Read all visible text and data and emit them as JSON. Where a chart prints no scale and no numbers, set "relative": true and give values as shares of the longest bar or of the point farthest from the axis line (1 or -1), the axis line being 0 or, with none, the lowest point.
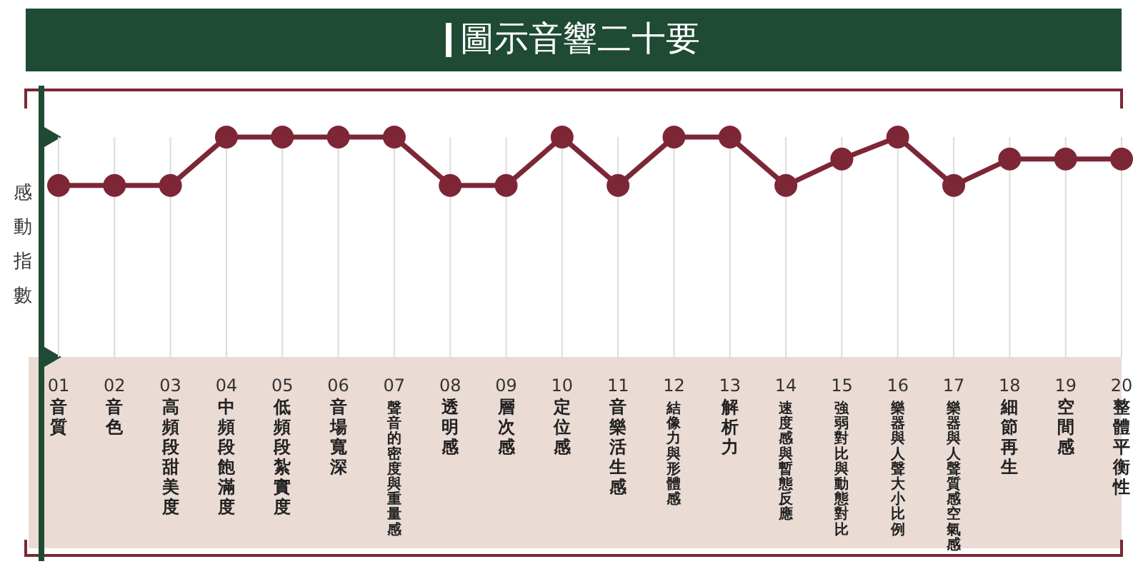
{
  "chart_data": {
    "type": "line",
    "title": "圖示音響二十要",
    "ylabel": "感動指數",
    "relative": true,
    "grid": "x",
    "marker": "circle",
    "line_style": "solid",
    "categories": [
      "01 音質",
      "02 音色",
      "03 高頻段甜美度",
      "04 中頻段飽滿度",
      "05 低頻段紮實度",
      "06 音場寬深",
      "07 聲音的密度與重量感",
      "08 透明感",
      "09 層次感",
      "10 定位感",
      "11 音樂活生感",
      "12 結像力與形體感",
      "13 解析力",
      "14 速度感與暫態反應",
      "15 強弱對比與動態對比",
      "16 樂器與人聲大小比例",
      "17 樂器與人聲質感空氣感",
      "18 細節再生",
      "19 空間感",
      "20 整體平衡性"
    ],
    "series": [
      {
        "color": "#7d2636",
        "values": [
          0.78,
          0.78,
          0.78,
          1,
          1,
          1,
          1,
          0.78,
          0.78,
          1,
          0.78,
          1,
          1,
          0.78,
          0.9,
          1,
          0.78,
          0.9,
          0.9,
          0.9
        ]
      }
    ]
  }
}
